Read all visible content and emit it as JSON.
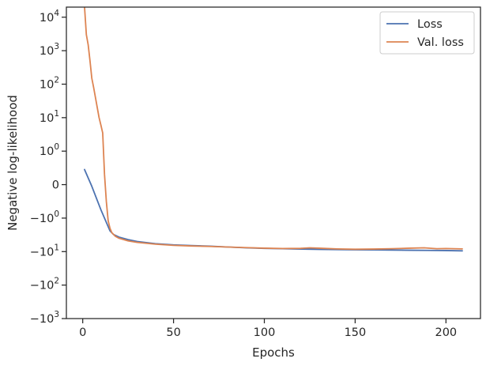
{
  "chart_data": {
    "type": "line",
    "title": "",
    "xlabel": "Epochs",
    "ylabel": "Negative log-likelihood",
    "yscale": "symlog",
    "xlim": [
      -9,
      219
    ],
    "ylim": [
      -1000,
      20000
    ],
    "grid": false,
    "legend": "top-right",
    "x_ticks": [
      {
        "value": 0,
        "label": "0"
      },
      {
        "value": 50,
        "label": "50"
      },
      {
        "value": 100,
        "label": "100"
      },
      {
        "value": 150,
        "label": "150"
      },
      {
        "value": 200,
        "label": "200"
      }
    ],
    "y_ticks": [
      {
        "value": 10000,
        "base": "10",
        "exp": "4"
      },
      {
        "value": 1000,
        "base": "10",
        "exp": "3"
      },
      {
        "value": 100,
        "base": "10",
        "exp": "2"
      },
      {
        "value": 10,
        "base": "10",
        "exp": "1"
      },
      {
        "value": 1,
        "base": "10",
        "exp": "0"
      },
      {
        "value": 0,
        "base": "0",
        "exp": ""
      },
      {
        "value": -1,
        "base": "−10",
        "exp": "0"
      },
      {
        "value": -10,
        "base": "−10",
        "exp": "1"
      },
      {
        "value": -100,
        "base": "−10",
        "exp": "2"
      },
      {
        "value": -1000,
        "base": "−10",
        "exp": "3"
      }
    ],
    "series": [
      {
        "name": "Loss",
        "color": "#4c72b0",
        "points": [
          [
            1,
            0.45
          ],
          [
            5,
            -0.05
          ],
          [
            10,
            -0.75
          ],
          [
            15,
            -2.4
          ],
          [
            17,
            -3.1
          ],
          [
            20,
            -3.7
          ],
          [
            25,
            -4.4
          ],
          [
            30,
            -5.0
          ],
          [
            40,
            -5.8
          ],
          [
            50,
            -6.3
          ],
          [
            60,
            -6.6
          ],
          [
            70,
            -6.9
          ],
          [
            80,
            -7.3
          ],
          [
            90,
            -7.7
          ],
          [
            100,
            -8.0
          ],
          [
            110,
            -8.2
          ],
          [
            120,
            -8.4
          ],
          [
            130,
            -8.6
          ],
          [
            140,
            -8.7
          ],
          [
            150,
            -8.8
          ],
          [
            160,
            -8.9
          ],
          [
            170,
            -9.0
          ],
          [
            180,
            -9.1
          ],
          [
            190,
            -9.2
          ],
          [
            200,
            -9.3
          ],
          [
            209,
            -9.5
          ]
        ]
      },
      {
        "name": "Val. loss",
        "color": "#dd8452",
        "points": [
          [
            1,
            20000
          ],
          [
            2,
            3000
          ],
          [
            3,
            1500
          ],
          [
            4,
            500
          ],
          [
            5,
            150
          ],
          [
            6,
            80
          ],
          [
            7,
            40
          ],
          [
            8,
            20
          ],
          [
            9,
            10
          ],
          [
            10,
            6
          ],
          [
            11,
            3.5
          ],
          [
            12,
            0.3
          ],
          [
            13,
            -0.5
          ],
          [
            14,
            -1.2
          ],
          [
            15,
            -2.0
          ],
          [
            16,
            -2.7
          ],
          [
            18,
            -3.5
          ],
          [
            20,
            -4.0
          ],
          [
            25,
            -4.8
          ],
          [
            30,
            -5.3
          ],
          [
            40,
            -6.0
          ],
          [
            50,
            -6.5
          ],
          [
            60,
            -6.8
          ],
          [
            70,
            -7.0
          ],
          [
            80,
            -7.3
          ],
          [
            90,
            -7.6
          ],
          [
            100,
            -7.9
          ],
          [
            110,
            -8.1
          ],
          [
            120,
            -8.0
          ],
          [
            125,
            -7.7
          ],
          [
            130,
            -7.9
          ],
          [
            140,
            -8.3
          ],
          [
            150,
            -8.5
          ],
          [
            160,
            -8.4
          ],
          [
            170,
            -8.2
          ],
          [
            180,
            -7.9
          ],
          [
            188,
            -7.7
          ],
          [
            195,
            -8.2
          ],
          [
            200,
            -8.1
          ],
          [
            209,
            -8.3
          ]
        ]
      }
    ]
  }
}
